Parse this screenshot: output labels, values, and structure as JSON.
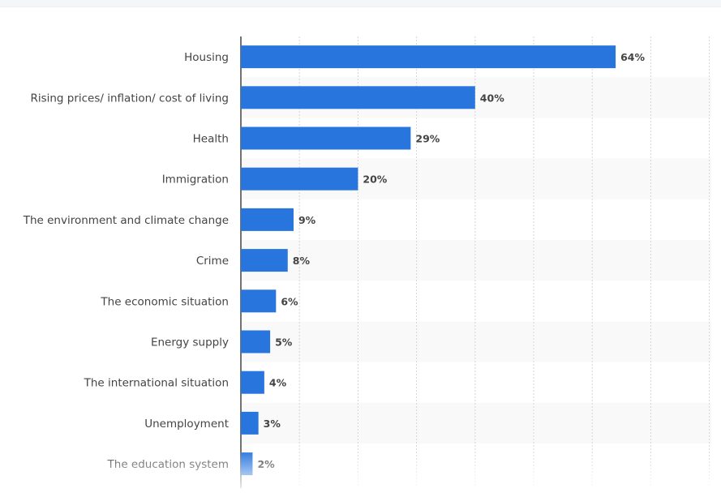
{
  "chart_data": {
    "type": "bar",
    "orientation": "horizontal",
    "categories": [
      "Housing",
      "Rising prices/ inflation/ cost of living",
      "Health",
      "Immigration",
      "The environment and climate change",
      "Crime",
      "The economic situation",
      "Energy supply",
      "The international situation",
      "Unemployment",
      "The education system"
    ],
    "values": [
      64,
      40,
      29,
      20,
      9,
      8,
      6,
      5,
      4,
      3,
      2
    ],
    "value_labels": [
      "64%",
      "40%",
      "29%",
      "20%",
      "9%",
      "8%",
      "6%",
      "5%",
      "4%",
      "3%",
      "2%"
    ],
    "xlim": [
      0,
      80
    ],
    "grid": true,
    "bar_color": "#2876dd",
    "alt_row_color": "#f9f9f9"
  }
}
